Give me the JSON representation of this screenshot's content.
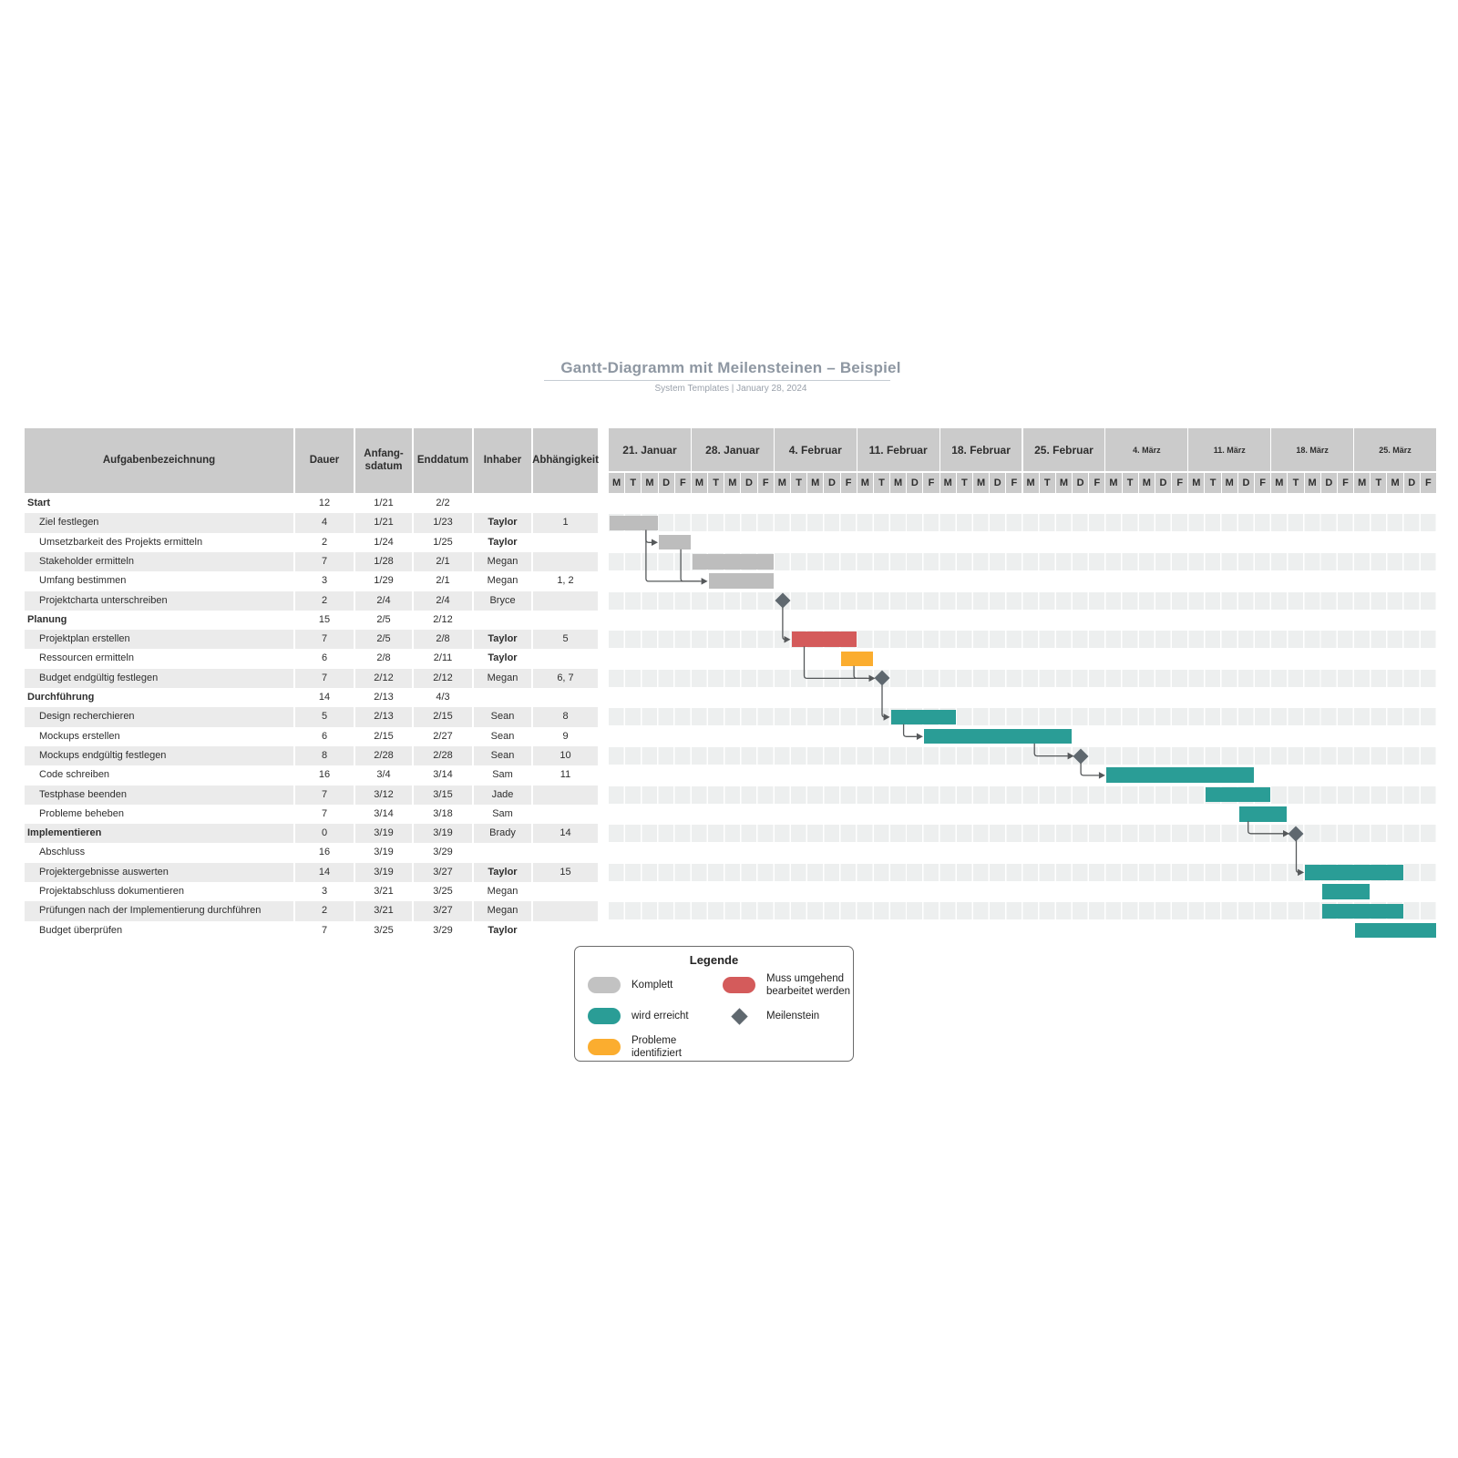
{
  "header": {
    "title": "Gantt-Diagramm mit Meilensteinen – Beispiel",
    "subtitle": "System Templates  |  January 28, 2024"
  },
  "table": {
    "columns": [
      "Aufgabenbezeichnung",
      "Dauer",
      "Anfang-\nsdatum",
      "Enddatum",
      "Inhaber",
      "Abhängigkeit"
    ]
  },
  "timeline": {
    "weeks": [
      "21. Januar",
      "28. Januar",
      "4. Februar",
      "11. Februar",
      "18. Februar",
      "25. Februar",
      "4. März",
      "11. März",
      "18. März",
      "25. März"
    ],
    "day_letters": [
      "M",
      "T",
      "M",
      "D",
      "F"
    ]
  },
  "chart_data": {
    "type": "gantt",
    "x_axis": {
      "unit": "days",
      "weeks": 10,
      "days_per_week": 5,
      "first_week": "21. Januar",
      "last_week": "25. März"
    },
    "tasks": [
      {
        "name": "Start",
        "level": 0,
        "bold": true,
        "dauer": "12",
        "anfang": "1/21",
        "ende": "2/2",
        "inhaber": "",
        "abh": "",
        "bar": null
      },
      {
        "name": "Ziel festlegen",
        "level": 1,
        "bold": false,
        "dauer": "4",
        "anfang": "1/21",
        "ende": "1/23",
        "inhaber": "Taylor",
        "abh": "1",
        "bar": {
          "type": "complete",
          "start": 1,
          "end": 3
        }
      },
      {
        "name": "Umsetzbarkeit des Projekts ermitteln",
        "level": 1,
        "bold": false,
        "dauer": "2",
        "anfang": "1/24",
        "ende": "1/25",
        "inhaber": "Taylor",
        "abh": "",
        "bar": {
          "type": "complete",
          "start": 4,
          "end": 5
        }
      },
      {
        "name": "Stakeholder ermitteln",
        "level": 1,
        "bold": false,
        "dauer": "7",
        "anfang": "1/28",
        "ende": "2/1",
        "inhaber": "Megan",
        "abh": "",
        "bar": {
          "type": "complete",
          "start": 6,
          "end": 10
        }
      },
      {
        "name": "Umfang bestimmen",
        "level": 1,
        "bold": false,
        "dauer": "3",
        "anfang": "1/29",
        "ende": "2/1",
        "inhaber": "Megan",
        "abh": "1, 2",
        "bar": {
          "type": "complete",
          "start": 7,
          "end": 10
        }
      },
      {
        "name": "Projektcharta unterschreiben",
        "level": 1,
        "bold": false,
        "dauer": "2",
        "anfang": "2/4",
        "ende": "2/4",
        "inhaber": "Bryce",
        "abh": "",
        "bar": {
          "type": "milestone",
          "day": 11
        }
      },
      {
        "name": "Planung",
        "level": 0,
        "bold": true,
        "dauer": "15",
        "anfang": "2/5",
        "ende": "2/12",
        "inhaber": "",
        "abh": "",
        "bar": null
      },
      {
        "name": "Projektplan erstellen",
        "level": 1,
        "bold": false,
        "dauer": "7",
        "anfang": "2/5",
        "ende": "2/8",
        "inhaber": "Taylor",
        "abh": "5",
        "bar": {
          "type": "urgent",
          "start": 12,
          "end": 15
        }
      },
      {
        "name": "Ressourcen ermitteln",
        "level": 1,
        "bold": false,
        "dauer": "6",
        "anfang": "2/8",
        "ende": "2/11",
        "inhaber": "Taylor",
        "abh": "",
        "bar": {
          "type": "problem",
          "start": 15,
          "end": 16
        }
      },
      {
        "name": "Budget endgültig festlegen",
        "level": 1,
        "bold": false,
        "dauer": "7",
        "anfang": "2/12",
        "ende": "2/12",
        "inhaber": "Megan",
        "abh": "6, 7",
        "bar": {
          "type": "milestone",
          "day": 17
        }
      },
      {
        "name": "Durchführung",
        "level": 0,
        "bold": true,
        "dauer": "14",
        "anfang": "2/13",
        "ende": "4/3",
        "inhaber": "",
        "abh": "",
        "bar": null
      },
      {
        "name": "Design recherchieren",
        "level": 1,
        "bold": false,
        "dauer": "5",
        "anfang": "2/13",
        "ende": "2/15",
        "inhaber": "Sean",
        "abh": "8",
        "bar": {
          "type": "ontrack",
          "start": 18,
          "end": 21
        }
      },
      {
        "name": "Mockups erstellen",
        "level": 1,
        "bold": false,
        "dauer": "6",
        "anfang": "2/15",
        "ende": "2/27",
        "inhaber": "Sean",
        "abh": "9",
        "bar": {
          "type": "ontrack",
          "start": 20,
          "end": 28
        }
      },
      {
        "name": "Mockups endgültig festlegen",
        "level": 1,
        "bold": false,
        "dauer": "8",
        "anfang": "2/28",
        "ende": "2/28",
        "inhaber": "Sean",
        "abh": "10",
        "bar": {
          "type": "milestone",
          "day": 29
        }
      },
      {
        "name": "Code schreiben",
        "level": 1,
        "bold": false,
        "dauer": "16",
        "anfang": "3/4",
        "ende": "3/14",
        "inhaber": "Sam",
        "abh": "11",
        "bar": {
          "type": "ontrack",
          "start": 31,
          "end": 39
        }
      },
      {
        "name": "Testphase beenden",
        "level": 1,
        "bold": false,
        "dauer": "7",
        "anfang": "3/12",
        "ende": "3/15",
        "inhaber": "Jade",
        "abh": "",
        "bar": {
          "type": "ontrack",
          "start": 37,
          "end": 40
        }
      },
      {
        "name": "Probleme beheben",
        "level": 1,
        "bold": false,
        "dauer": "7",
        "anfang": "3/14",
        "ende": "3/18",
        "inhaber": "Sam",
        "abh": "",
        "bar": {
          "type": "ontrack",
          "start": 39,
          "end": 41
        }
      },
      {
        "name": "Implementieren",
        "level": 0,
        "bold": true,
        "dauer": "0",
        "anfang": "3/19",
        "ende": "3/19",
        "inhaber": "Brady",
        "abh": "14",
        "bar": {
          "type": "milestone",
          "day": 42
        }
      },
      {
        "name": "Abschluss",
        "level": 1,
        "bold": false,
        "dauer": "16",
        "anfang": "3/19",
        "ende": "3/29",
        "inhaber": "",
        "abh": "",
        "bar": null
      },
      {
        "name": "Projektergebnisse auswerten",
        "level": 1,
        "bold": false,
        "dauer": "14",
        "anfang": "3/19",
        "ende": "3/27",
        "inhaber": "Taylor",
        "abh": "15",
        "bar": {
          "type": "ontrack",
          "start": 43,
          "end": 48
        }
      },
      {
        "name": "Projektabschluss dokumentieren",
        "level": 1,
        "bold": false,
        "dauer": "3",
        "anfang": "3/21",
        "ende": "3/25",
        "inhaber": "Megan",
        "abh": "",
        "bar": {
          "type": "ontrack",
          "start": 44,
          "end": 46
        }
      },
      {
        "name": "Prüfungen nach der Implementierung durchführen",
        "level": 1,
        "bold": false,
        "dauer": "2",
        "anfang": "3/21",
        "ende": "3/27",
        "inhaber": "Megan",
        "abh": "",
        "bar": {
          "type": "ontrack",
          "start": 44,
          "end": 48
        }
      },
      {
        "name": "Budget überprüfen",
        "level": 1,
        "bold": false,
        "dauer": "7",
        "anfang": "3/25",
        "ende": "3/29",
        "inhaber": "Taylor",
        "abh": "",
        "bar": {
          "type": "ontrack",
          "start": 46,
          "end": 50
        }
      }
    ],
    "connectors": [
      {
        "from": {
          "row": 2,
          "du": 2.25,
          "kind": "bar"
        },
        "to": {
          "row": 3,
          "du": 3.0,
          "kind": "bar"
        }
      },
      {
        "from": {
          "row": 2,
          "du": 2.25,
          "kind": "bar"
        },
        "to": {
          "row": 5,
          "du": 6.0,
          "kind": "bar"
        }
      },
      {
        "from": {
          "row": 3,
          "du": 4.35,
          "kind": "bar"
        },
        "to": {
          "row": 5,
          "du": 5.5,
          "kind": "join"
        }
      },
      {
        "from": {
          "row": 6,
          "du": 10.5,
          "kind": "milestone"
        },
        "to": {
          "row": 8,
          "du": 11.0,
          "kind": "bar"
        }
      },
      {
        "from": {
          "row": 8,
          "du": 11.8,
          "kind": "bar"
        },
        "to": {
          "row": 10,
          "du": 16.5,
          "kind": "milestone"
        }
      },
      {
        "from": {
          "row": 9,
          "du": 14.8,
          "kind": "bar"
        },
        "to": {
          "row": 10,
          "du": 15.6,
          "kind": "join"
        }
      },
      {
        "from": {
          "row": 10,
          "du": 16.5,
          "kind": "milestone"
        },
        "to": {
          "row": 12,
          "du": 17.0,
          "kind": "bar"
        }
      },
      {
        "from": {
          "row": 12,
          "du": 17.8,
          "kind": "bar"
        },
        "to": {
          "row": 13,
          "du": 19.0,
          "kind": "bar"
        }
      },
      {
        "from": {
          "row": 13,
          "du": 25.7,
          "kind": "bar"
        },
        "to": {
          "row": 14,
          "du": 28.5,
          "kind": "milestone"
        }
      },
      {
        "from": {
          "row": 14,
          "du": 28.5,
          "kind": "milestone"
        },
        "to": {
          "row": 15,
          "du": 30.0,
          "kind": "bar"
        }
      },
      {
        "from": {
          "row": 17,
          "du": 38.6,
          "kind": "bar"
        },
        "to": {
          "row": 18,
          "du": 41.5,
          "kind": "milestone"
        }
      },
      {
        "from": {
          "row": 18,
          "du": 41.5,
          "kind": "milestone"
        },
        "to": {
          "row": 20,
          "du": 42.0,
          "kind": "bar"
        }
      }
    ]
  },
  "legend": {
    "title": "Legende",
    "items": [
      {
        "label": "Komplett",
        "swatch": "complete"
      },
      {
        "label": "Muss umgehend bearbeitet werden",
        "swatch": "urgent"
      },
      {
        "label": "wird erreicht",
        "swatch": "ontrack"
      },
      {
        "label": "Meilenstein",
        "swatch": "diamond"
      },
      {
        "label": "Probleme identifiziert",
        "swatch": "problem"
      }
    ]
  },
  "colors": {
    "complete": "#bdbdbd",
    "ontrack": "#2a9d96",
    "urgent": "#d45b5b",
    "problem": "#fbad2f",
    "milestone": "#5f686f",
    "header_bg": "#cbcbcb",
    "stripe": "#ebebeb",
    "connector": "#55585a",
    "title": "#8e97a2"
  }
}
